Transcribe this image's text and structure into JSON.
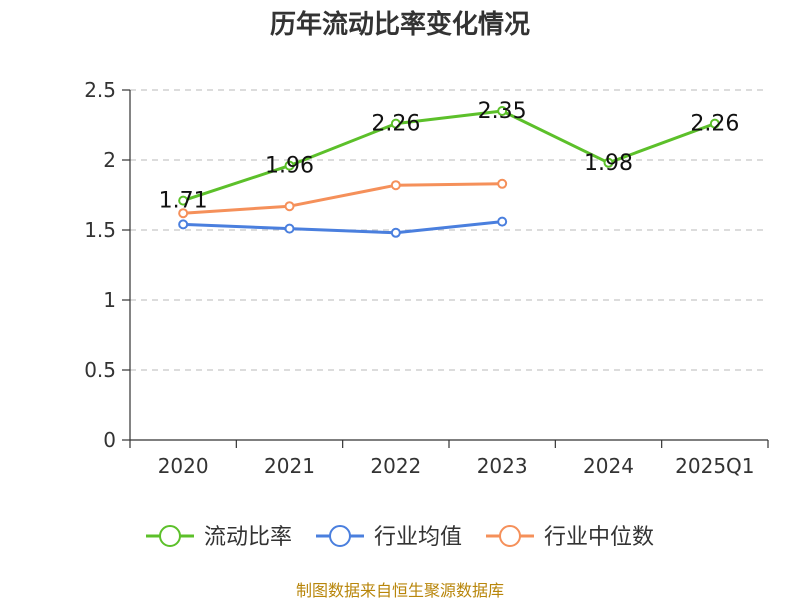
{
  "chart_data": {
    "type": "line",
    "title": "历年流动比率变化情况",
    "categories": [
      "2020",
      "2021",
      "2022",
      "2023",
      "2024",
      "2025Q1"
    ],
    "ylim": [
      0,
      2.5
    ],
    "yticks": [
      "0",
      "0.5",
      "1",
      "1.5",
      "2",
      "2.5"
    ],
    "grid": true,
    "legend_position": "bottom",
    "series": [
      {
        "name": "流动比率",
        "color": "#5cc02a",
        "values": [
          1.71,
          1.96,
          2.26,
          2.35,
          1.98,
          2.26
        ],
        "labels": [
          "1.71",
          "1.96",
          "2.26",
          "2.35",
          "1.98",
          "2.26"
        ]
      },
      {
        "name": "行业均值",
        "color": "#4a7fde",
        "values": [
          1.54,
          1.51,
          1.48,
          1.56,
          null,
          null
        ]
      },
      {
        "name": "行业中位数",
        "color": "#f5905a",
        "values": [
          1.62,
          1.67,
          1.82,
          1.83,
          null,
          null
        ]
      }
    ]
  },
  "source": "制图数据来自恒生聚源数据库"
}
